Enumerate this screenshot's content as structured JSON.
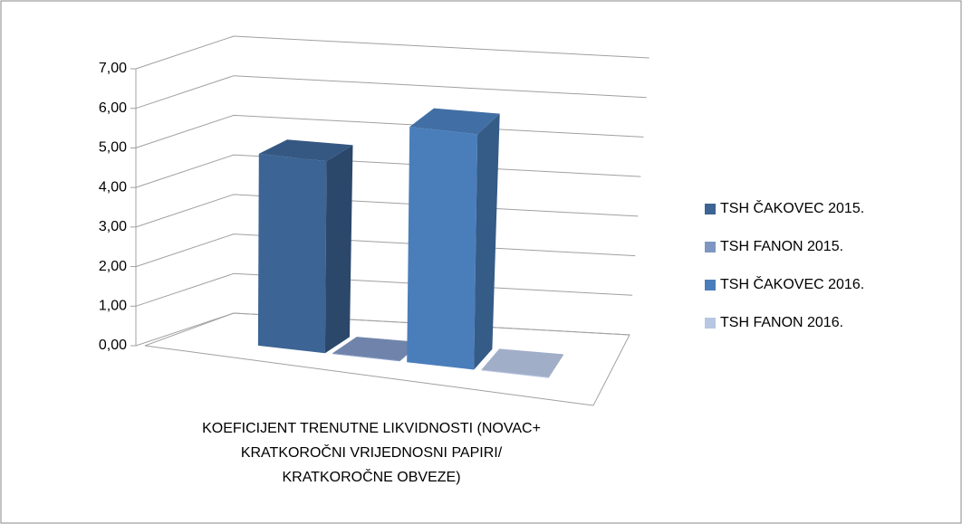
{
  "chart_data": {
    "type": "bar3d",
    "categories": [
      "KOEFICIJENT TRENUTNE LIKVIDNOSTI (NOVAC+ KRATKOROČNI VRIJEDNOSNI PAPIRI/ KRATKOROČNE OBVEZE)"
    ],
    "series": [
      {
        "name": "TSH ČAKOVEC 2015.",
        "color": "#3c6494",
        "values": [
          4.85
        ]
      },
      {
        "name": "TSH FANON 2015.",
        "color": "#7f96c2",
        "values": [
          0.02
        ]
      },
      {
        "name": "TSH ČAKOVEC 2016.",
        "color": "#4a7ebb",
        "values": [
          5.95
        ]
      },
      {
        "name": "TSH FANON 2016.",
        "color": "#b7c6e2",
        "values": [
          0.02
        ]
      }
    ],
    "ylim": [
      0,
      7
    ],
    "yticks": [
      {
        "value": 0,
        "label": "0,00"
      },
      {
        "value": 1,
        "label": "1,00"
      },
      {
        "value": 2,
        "label": "2,00"
      },
      {
        "value": 3,
        "label": "3,00"
      },
      {
        "value": 4,
        "label": "4,00"
      },
      {
        "value": 5,
        "label": "5,00"
      },
      {
        "value": 6,
        "label": "6,00"
      },
      {
        "value": 7,
        "label": "7,00"
      }
    ],
    "grid": true,
    "legend": "right"
  }
}
